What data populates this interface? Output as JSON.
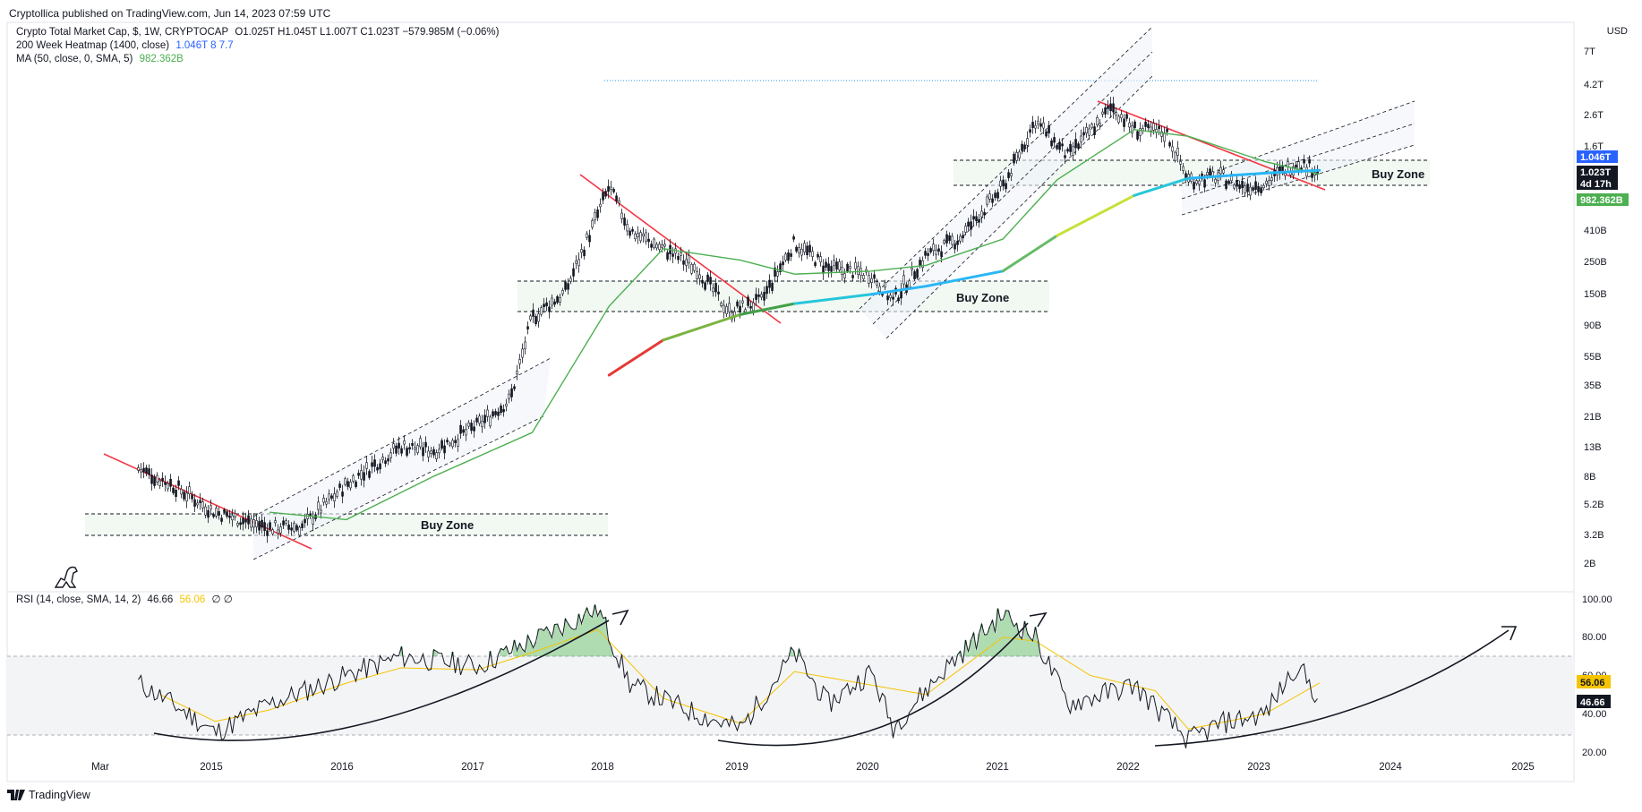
{
  "header": {
    "published": "Cryptollica published on TradingView.com, Jun 14, 2023 07:59 UTC",
    "currency": "USD",
    "brand": "TradingView"
  },
  "legend": {
    "symbol_title": "Crypto Total Market Cap, $, 1W, CRYPTOCAP",
    "ohlc": "O1.025T  H1.045T  L1.007T  C1.023T  −579.985M (−0.06%)",
    "heatmap_label": "200 Week Heatmap (1400, close)",
    "heatmap_vals": "1.046T  8  7.7",
    "ma_label": "MA (50, close, 0, SMA, 5)",
    "ma_val": "982.362B",
    "rsi_label": "RSI (14, close, SMA, 14, 2)",
    "rsi_val": "46.66",
    "rsi_sma_val": "56.06",
    "rsi_extra": "∅  ∅"
  },
  "colors": {
    "candle": "#131722",
    "ma_green": "#4caf50",
    "trend_red": "#f23645",
    "rsi_line": "#131722",
    "rsi_sma": "#f5c400",
    "blue_label": "#2962ff"
  },
  "price_axis": {
    "ticks": [
      "7T",
      "4.2T",
      "2.6T",
      "1.6T",
      "410B",
      "250B",
      "150B",
      "90B",
      "55B",
      "35B",
      "21B",
      "13B",
      "8B",
      "5.2B",
      "3.2B",
      "2B"
    ],
    "badges": [
      {
        "text": "1.046T",
        "color": "#2962ff"
      },
      {
        "text": "1.023T",
        "color": "#131722"
      },
      {
        "text": "4d 17h",
        "color": "#131722"
      },
      {
        "text": "982.362B",
        "color": "#4caf50"
      }
    ]
  },
  "rsi_axis": {
    "ticks": [
      "100.00",
      "80.00",
      "60.00",
      "40.00",
      "20.00"
    ],
    "badges": [
      {
        "text": "56.06",
        "color": "#f5c400"
      },
      {
        "text": "46.66",
        "color": "#131722"
      }
    ]
  },
  "time_axis": [
    "Mar",
    "2015",
    "2016",
    "2017",
    "2018",
    "2019",
    "2020",
    "2021",
    "2022",
    "2023",
    "2024",
    "2025"
  ],
  "annotations": {
    "buy_zone_1": "Buy Zone",
    "buy_zone_2": "Buy Zone",
    "buy_zone_3": "Buy Zone"
  },
  "chart_data": [
    {
      "type": "line",
      "title": "Crypto Total Market Cap, $, 1W, CRYPTOCAP",
      "yscale": "log",
      "ylim": [
        1800000000,
        8000000000000
      ],
      "xlim": [
        "2014-03-01",
        "2025-06-01"
      ],
      "series": [
        {
          "name": "Crypto Total Market Cap",
          "x": [
            "2014-06",
            "2014-09",
            "2015-01",
            "2015-06",
            "2015-09",
            "2016-01",
            "2016-06",
            "2016-09",
            "2017-01",
            "2017-04",
            "2017-06",
            "2017-09",
            "2018-01",
            "2018-03",
            "2018-06",
            "2018-09",
            "2018-12",
            "2019-03",
            "2019-06",
            "2019-09",
            "2020-01",
            "2020-03",
            "2020-06",
            "2020-09",
            "2021-01",
            "2021-04",
            "2021-07",
            "2021-11",
            "2022-01",
            "2022-04",
            "2022-06",
            "2022-09",
            "2022-11",
            "2023-01",
            "2023-04",
            "2023-06"
          ],
          "values": [
            9000000000.0,
            7000000000.0,
            4500000000.0,
            3500000000.0,
            3600000000.0,
            7000000000.0,
            13000000000.0,
            12000000000.0,
            18000000000.0,
            27000000000.0,
            100000000000.0,
            150000000000.0,
            800000000000.0,
            400000000000.0,
            300000000000.0,
            220000000000.0,
            110000000000.0,
            130000000000.0,
            330000000000.0,
            220000000000.0,
            200000000000.0,
            130000000000.0,
            270000000000.0,
            350000000000.0,
            800000000000.0,
            2300000000000.0,
            1300000000000.0,
            2900000000000.0,
            2000000000000.0,
            1900000000000.0,
            900000000000.0,
            950000000000.0,
            800000000000.0,
            850000000000.0,
            1200000000000.0,
            1023000000000.0
          ]
        },
        {
          "name": "MA (50, close, 0, SMA, 5)",
          "x": [
            "2015-06",
            "2016-01",
            "2016-09",
            "2017-06",
            "2018-01",
            "2018-06",
            "2019-01",
            "2019-06",
            "2020-01",
            "2020-06",
            "2021-01",
            "2021-06",
            "2022-01",
            "2022-06",
            "2023-01",
            "2023-06"
          ],
          "values": [
            4500000000.0,
            4000000000.0,
            8000000000.0,
            16000000000.0,
            120000000000.0,
            300000000000.0,
            250000000000.0,
            200000000000.0,
            210000000000.0,
            230000000000.0,
            350000000000.0,
            900000000000.0,
            2000000000000.0,
            1800000000000.0,
            1200000000000.0,
            982362000000.0
          ]
        },
        {
          "name": "200 Week Heatmap (1400, close)",
          "x": [
            "2018-01",
            "2018-06",
            "2019-01",
            "2019-06",
            "2020-01",
            "2020-06",
            "2021-01",
            "2021-06",
            "2022-01",
            "2022-06",
            "2023-01",
            "2023-06"
          ],
          "values": [
            40000000000.0,
            70000000000.0,
            105000000000.0,
            125000000000.0,
            145000000000.0,
            165000000000.0,
            210000000000.0,
            370000000000.0,
            700000000000.0,
            920000000000.0,
            1000000000000.0,
            1046000000000.0
          ]
        }
      ],
      "zones": [
        {
          "label": "Buy Zone",
          "from": "2014-03",
          "to": "2018-01",
          "low": 3200000000.0,
          "high": 4600000000.0
        },
        {
          "label": "Buy Zone",
          "from": "2017-03",
          "to": "2020-10",
          "low": 110000000000.0,
          "high": 190000000000.0
        },
        {
          "label": "Buy Zone",
          "from": "2020-08",
          "to": "2023-09",
          "low": 820000000000.0,
          "high": 1400000000000.0
        }
      ],
      "reference_line": {
        "value": 4300000000000.0,
        "style": "dotted"
      }
    },
    {
      "type": "line",
      "title": "RSI (14, close, SMA, 14, 2)",
      "ylim": [
        20,
        100
      ],
      "bands": [
        30,
        70
      ],
      "series": [
        {
          "name": "RSI (14, close, SMA, 14, 2)",
          "x": [
            "2014-06",
            "2014-10",
            "2015-01",
            "2015-06",
            "2016-01",
            "2016-06",
            "2017-01",
            "2017-06",
            "2017-12",
            "2018-03",
            "2018-09",
            "2019-01",
            "2019-06",
            "2019-09",
            "2020-01",
            "2020-03",
            "2020-08",
            "2021-01",
            "2021-04",
            "2021-07",
            "2022-01",
            "2022-06",
            "2022-09",
            "2023-01",
            "2023-04",
            "2023-06"
          ],
          "values": [
            56,
            42,
            30,
            45,
            60,
            70,
            65,
            78,
            95,
            55,
            40,
            32,
            72,
            45,
            62,
            33,
            65,
            92,
            80,
            45,
            55,
            26,
            35,
            40,
            66,
            46.66
          ]
        },
        {
          "name": "RSI SMA",
          "x": [
            "2014-08",
            "2015-01",
            "2015-06",
            "2016-01",
            "2016-06",
            "2017-01",
            "2017-06",
            "2017-12",
            "2018-06",
            "2019-01",
            "2019-06",
            "2020-01",
            "2020-06",
            "2021-01",
            "2021-04",
            "2021-09",
            "2022-03",
            "2022-06",
            "2023-01",
            "2023-06"
          ],
          "values": [
            50,
            36,
            42,
            56,
            64,
            63,
            72,
            84,
            48,
            35,
            62,
            55,
            50,
            80,
            78,
            60,
            52,
            32,
            40,
            56.06
          ]
        }
      ]
    }
  ]
}
